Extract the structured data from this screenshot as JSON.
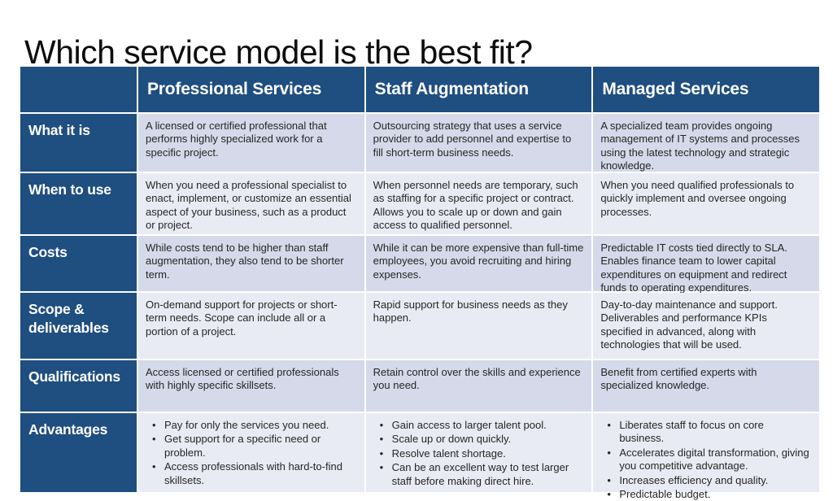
{
  "page": {
    "title": "Which service model is the best fit?"
  },
  "colors": {
    "header_bg": "#1F4E80",
    "row_band_dark": "#D5D9E9",
    "row_band_light": "#E9EBF4",
    "header_text": "#FFFFFF",
    "body_text": "#262626"
  },
  "table": {
    "columns": [
      "Professional Services",
      "Staff Augmentation",
      "Managed Services"
    ],
    "rows": [
      {
        "label": "What it is",
        "cells": [
          "A licensed or certified professional that performs highly specialized work for a specific project.",
          "Outsourcing strategy that uses a service provider to add personnel and expertise to fill short-term business needs.",
          "A specialized team provides ongoing management of IT systems and processes using the latest technology and strategic knowledge."
        ]
      },
      {
        "label": "When to use",
        "cells": [
          "When you need a professional specialist to enact, implement, or customize an essential aspect of your business, such as a product or project.",
          "When personnel needs are temporary, such as staffing for a specific project or contract. Allows you to scale up or down and gain access to qualified personnel.",
          "When you need qualified professionals to quickly implement and oversee ongoing processes."
        ]
      },
      {
        "label": "Costs",
        "cells": [
          "While costs tend to be higher than staff augmentation, they also tend to be shorter term.",
          "While it can be more expensive than full-time employees, you avoid recruiting and hiring expenses.",
          "Predictable IT costs tied directly to SLA. Enables finance team to lower capital expenditures on equipment and redirect funds to operating expenditures."
        ]
      },
      {
        "label": "Scope & deliverables",
        "cells": [
          "On-demand support for projects or short-term needs. Scope can include all or a portion of a project.",
          "Rapid support for business needs as they happen.",
          "Day-to-day maintenance and support. Deliverables and performance KPIs specified in advanced, along with technologies that will be used."
        ]
      },
      {
        "label": "Qualifications",
        "cells": [
          "Access licensed or certified professionals with highly specific skillsets.",
          "Retain control over the skills and experience you need.",
          "Benefit from certified experts with specialized knowledge."
        ]
      },
      {
        "label": "Advantages",
        "bullets": [
          [
            "Pay for only the services you need.",
            "Get support for a specific need or problem.",
            "Access professionals with hard-to-find skillsets."
          ],
          [
            "Gain access to larger talent pool.",
            "Scale up or down quickly.",
            "Resolve talent shortage.",
            "Can be an excellent way to test larger staff before making direct hire."
          ],
          [
            "Liberates staff to focus on core business.",
            "Accelerates digital transformation, giving you competitive advantage.",
            "Increases efficiency and quality.",
            "Predictable budget."
          ]
        ]
      }
    ]
  }
}
